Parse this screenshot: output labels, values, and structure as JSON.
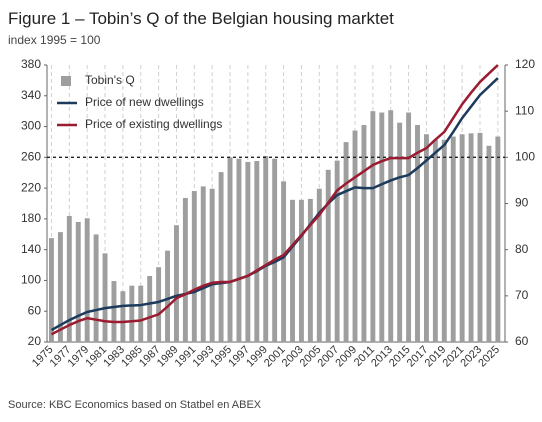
{
  "chart_data": {
    "type": "bar_line",
    "title": "Figure 1 – Tobin’s Q of the Belgian housing marktet",
    "subtitle": "index 1995 = 100",
    "source": "Source: KBC Economics based on Statbel en ABEX",
    "x": [
      1975,
      1976,
      1977,
      1978,
      1979,
      1980,
      1981,
      1982,
      1983,
      1984,
      1985,
      1986,
      1987,
      1988,
      1989,
      1990,
      1991,
      1992,
      1993,
      1994,
      1995,
      1996,
      1997,
      1998,
      1999,
      2000,
      2001,
      2002,
      2003,
      2004,
      2005,
      2006,
      2007,
      2008,
      2009,
      2010,
      2011,
      2012,
      2013,
      2014,
      2015,
      2016,
      2017,
      2018,
      2019,
      2020,
      2021,
      2022,
      2023,
      2024,
      2025
    ],
    "xlim": [
      1974.5,
      2025.8
    ],
    "xticks": [
      1975,
      1977,
      1979,
      1981,
      1983,
      1985,
      1987,
      1989,
      1991,
      1993,
      1995,
      1997,
      1999,
      2001,
      2003,
      2005,
      2007,
      2009,
      2011,
      2013,
      2015,
      2017,
      2019,
      2021,
      2023,
      2025
    ],
    "ylim": [
      20,
      380
    ],
    "yticks": [
      20,
      60,
      100,
      140,
      180,
      220,
      260,
      300,
      340,
      380
    ],
    "y2lim": [
      60,
      120
    ],
    "y2ticks": [
      60,
      70,
      80,
      90,
      100,
      110,
      120
    ],
    "grid": true,
    "legend": "upper left",
    "reference_line": {
      "value": 100,
      "axis": "y2"
    },
    "series": [
      {
        "name": "Tobin's Q",
        "kind": "bar",
        "axis": "y2",
        "color": "#9e9e9e",
        "values": [
          82.5,
          83.8,
          87.3,
          86,
          86.8,
          83.3,
          79.2,
          73.2,
          71,
          72.2,
          72.2,
          74.3,
          76.2,
          79.8,
          85.3,
          91.2,
          92.7,
          93.7,
          93.2,
          96.8,
          100,
          99.7,
          99,
          99.2,
          100.3,
          99.7,
          94.8,
          90.8,
          90.8,
          91,
          93.2,
          97.3,
          99.3,
          103.3,
          105.8,
          107,
          110,
          109.7,
          110.2,
          107.5,
          109.7,
          107,
          105,
          103.8,
          103.8,
          104.5,
          105,
          105.2,
          105.3,
          102.5,
          104.5
        ]
      },
      {
        "name": "Price of new dwellings",
        "kind": "line",
        "color": "#1b3a5c",
        "values": [
          35.5,
          42,
          48.5,
          54,
          59,
          61.5,
          64,
          65.5,
          67,
          67.5,
          68,
          70,
          72,
          76,
          80,
          82.5,
          85,
          90,
          95,
          96.5,
          98,
          102,
          106,
          112,
          119,
          124,
          130,
          144,
          158,
          173,
          188,
          200,
          211,
          216,
          221,
          220,
          220,
          225,
          230,
          234,
          237,
          246,
          256,
          266,
          276,
          293,
          311,
          326,
          341,
          352,
          363
        ]
      },
      {
        "name": "Price of existing dwellings",
        "kind": "line",
        "color": "#9b1b30",
        "values": [
          30,
          36,
          42,
          47,
          51,
          49,
          47,
          46,
          46,
          47,
          48,
          52,
          56,
          66,
          77,
          82,
          88,
          93,
          97,
          98,
          98,
          102,
          106,
          113,
          120,
          127,
          133,
          146,
          159,
          172,
          185,
          201,
          217,
          226,
          234,
          242,
          250,
          255,
          259,
          259,
          259,
          266,
          272,
          283,
          293,
          311,
          329,
          344,
          358,
          369,
          380
        ]
      }
    ]
  }
}
